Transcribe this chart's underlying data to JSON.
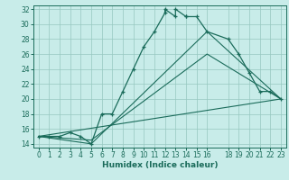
{
  "title": "",
  "xlabel": "Humidex (Indice chaleur)",
  "bg_color": "#c8ece9",
  "grid_color": "#96c8c0",
  "line_color": "#1a6b5a",
  "xlim": [
    -0.5,
    23.5
  ],
  "ylim": [
    13.5,
    32.5
  ],
  "yticks": [
    14,
    16,
    18,
    20,
    22,
    24,
    26,
    28,
    30,
    32
  ],
  "xticks": [
    0,
    1,
    2,
    3,
    4,
    5,
    6,
    7,
    8,
    9,
    10,
    11,
    12,
    13,
    14,
    15,
    16,
    18,
    19,
    20,
    21,
    22,
    23
  ],
  "line1_x": [
    0,
    1,
    2,
    3,
    4,
    5,
    6,
    7,
    8,
    9,
    10,
    11,
    12,
    12,
    13,
    13,
    14,
    14,
    15,
    16,
    18,
    19,
    20,
    21,
    22,
    23
  ],
  "line1_y": [
    15,
    15,
    15,
    15.5,
    15,
    14,
    18,
    18,
    21,
    24,
    27,
    29,
    31.5,
    32,
    31,
    32,
    31,
    31,
    31,
    29,
    28,
    26,
    23.5,
    21,
    21,
    20
  ],
  "line2_x": [
    0,
    5,
    16,
    23
  ],
  "line2_y": [
    15,
    14,
    29,
    20
  ],
  "line3_x": [
    0,
    5,
    16,
    23
  ],
  "line3_y": [
    15,
    14.5,
    26,
    20
  ],
  "line4_x": [
    0,
    23
  ],
  "line4_y": [
    15,
    20
  ]
}
